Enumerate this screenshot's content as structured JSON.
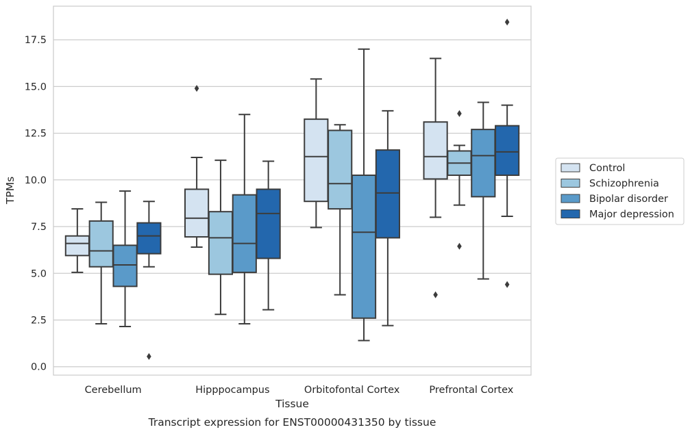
{
  "chart_data": {
    "type": "boxplot",
    "title": "Transcript expression for ENST00000431350 by tissue",
    "xlabel": "Tissue",
    "ylabel": "TPMs",
    "ylim": [
      -0.45,
      19.3
    ],
    "yticks": [
      "0.0",
      "2.5",
      "5.0",
      "7.5",
      "10.0",
      "12.5",
      "15.0",
      "17.5"
    ],
    "grid": "horizontal",
    "legend_position": "right",
    "categories": [
      "Cerebellum",
      "Hipppocampus",
      "Orbitofontal Cortex",
      "Prefrontal Cortex"
    ],
    "series": [
      {
        "name": "Control",
        "color": "#d4e3f1",
        "boxes": [
          {
            "whislo": 5.05,
            "q1": 5.95,
            "med": 6.6,
            "q3": 7.0,
            "whishi": 8.45,
            "fliers": []
          },
          {
            "whislo": 6.4,
            "q1": 6.95,
            "med": 7.95,
            "q3": 9.5,
            "whishi": 11.2,
            "fliers": [
              14.9
            ]
          },
          {
            "whislo": 7.45,
            "q1": 8.85,
            "med": 11.25,
            "q3": 13.25,
            "whishi": 15.4,
            "fliers": []
          },
          {
            "whislo": 8.0,
            "q1": 10.05,
            "med": 11.25,
            "q3": 13.1,
            "whishi": 16.5,
            "fliers": [
              3.85
            ]
          }
        ]
      },
      {
        "name": "Schizophrenia",
        "color": "#9cc7df",
        "boxes": [
          {
            "whislo": 2.3,
            "q1": 5.35,
            "med": 6.2,
            "q3": 7.8,
            "whishi": 8.8,
            "fliers": []
          },
          {
            "whislo": 2.8,
            "q1": 4.95,
            "med": 6.9,
            "q3": 8.3,
            "whishi": 11.05,
            "fliers": []
          },
          {
            "whislo": 3.85,
            "q1": 8.45,
            "med": 9.8,
            "q3": 12.65,
            "whishi": 12.95,
            "fliers": []
          },
          {
            "whislo": 8.65,
            "q1": 10.25,
            "med": 10.9,
            "q3": 11.55,
            "whishi": 11.85,
            "fliers": [
              13.55,
              6.45
            ]
          }
        ]
      },
      {
        "name": "Bipolar disorder",
        "color": "#5a9ac9",
        "boxes": [
          {
            "whislo": 2.15,
            "q1": 4.3,
            "med": 5.45,
            "q3": 6.5,
            "whishi": 9.4,
            "fliers": []
          },
          {
            "whislo": 2.3,
            "q1": 5.05,
            "med": 6.6,
            "q3": 9.2,
            "whishi": 13.5,
            "fliers": []
          },
          {
            "whislo": 1.4,
            "q1": 2.6,
            "med": 7.2,
            "q3": 10.25,
            "whishi": 17.0,
            "fliers": []
          },
          {
            "whislo": 4.7,
            "q1": 9.1,
            "med": 11.3,
            "q3": 12.7,
            "whishi": 14.15,
            "fliers": []
          }
        ]
      },
      {
        "name": "Major depression",
        "color": "#2367ad",
        "boxes": [
          {
            "whislo": 5.35,
            "q1": 6.05,
            "med": 7.0,
            "q3": 7.7,
            "whishi": 8.85,
            "fliers": [
              0.55
            ]
          },
          {
            "whislo": 3.05,
            "q1": 5.8,
            "med": 8.2,
            "q3": 9.5,
            "whishi": 11.0,
            "fliers": []
          },
          {
            "whislo": 2.2,
            "q1": 6.9,
            "med": 9.3,
            "q3": 11.6,
            "whishi": 13.7,
            "fliers": []
          },
          {
            "whislo": 8.05,
            "q1": 10.25,
            "med": 11.5,
            "q3": 12.9,
            "whishi": 14.0,
            "fliers": [
              18.45,
              4.4
            ]
          }
        ]
      }
    ]
  }
}
